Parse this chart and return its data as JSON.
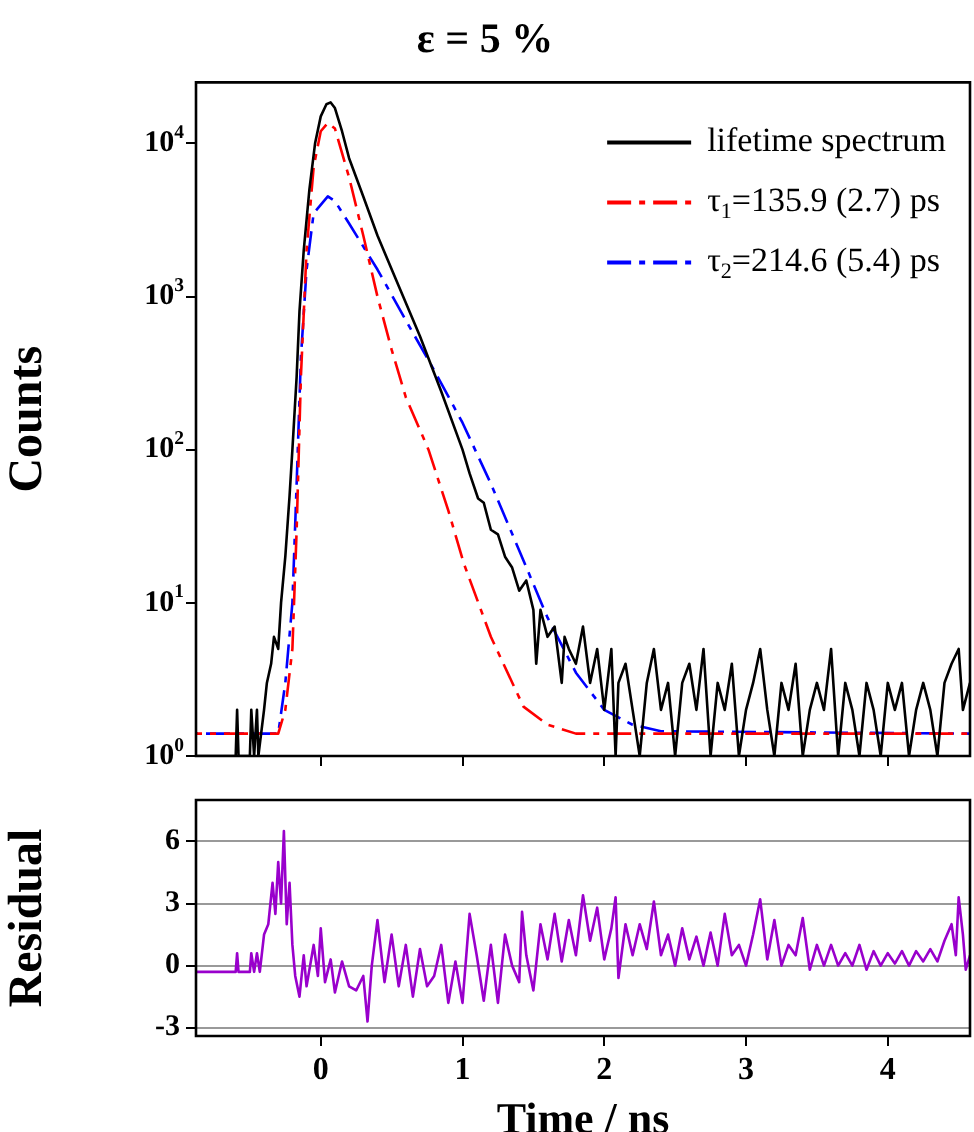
{
  "chart_data": [
    {
      "type": "line",
      "title": "ε = 5 %",
      "ylabel": "Counts",
      "log": "y",
      "xlim": [
        -0.88,
        4.58
      ],
      "xticks": [
        0,
        1,
        2,
        3,
        4
      ],
      "ylim": [
        1,
        25000
      ],
      "yticks": [
        {
          "value": 1,
          "label": "10$^{0}$"
        },
        {
          "value": 10,
          "label": "10$^{1}$"
        },
        {
          "value": 100,
          "label": "10$^{2}$"
        },
        {
          "value": 1000,
          "label": "10$^{3}$"
        },
        {
          "value": 10000,
          "label": "10$^{4}$"
        }
      ],
      "tick_labels": "y",
      "legend": "top right",
      "series": [
        {
          "name": "lifetime spectrum",
          "color": "#000000",
          "line_style": "solid",
          "x": [
            -0.88,
            -0.6,
            -0.59,
            -0.58,
            -0.5,
            -0.49,
            -0.47,
            -0.45,
            -0.44,
            -0.4,
            -0.38,
            -0.35,
            -0.33,
            -0.3,
            -0.28,
            -0.25,
            -0.22,
            -0.2,
            -0.17,
            -0.15,
            -0.12,
            -0.08,
            -0.04,
            0.0,
            0.04,
            0.07,
            0.1,
            0.15,
            0.2,
            0.3,
            0.4,
            0.55,
            0.7,
            0.85,
            1.0,
            1.05,
            1.11,
            1.15,
            1.2,
            1.25,
            1.3,
            1.35,
            1.4,
            1.45,
            1.5,
            1.52,
            1.55,
            1.6,
            1.65,
            1.7,
            1.72,
            1.75,
            1.8,
            1.85,
            1.9,
            1.95,
            2.0,
            2.05,
            2.08,
            2.1,
            2.15,
            2.2,
            2.25,
            2.3,
            2.35,
            2.4,
            2.45,
            2.5,
            2.55,
            2.6,
            2.65,
            2.7,
            2.75,
            2.8,
            2.85,
            2.9,
            2.95,
            3.0,
            3.05,
            3.1,
            3.15,
            3.2,
            3.25,
            3.3,
            3.35,
            3.4,
            3.45,
            3.5,
            3.55,
            3.6,
            3.65,
            3.7,
            3.75,
            3.8,
            3.85,
            3.9,
            3.95,
            4.0,
            4.05,
            4.1,
            4.15,
            4.2,
            4.25,
            4.3,
            4.35,
            4.4,
            4.45,
            4.5,
            4.53,
            4.58
          ],
          "values": [
            1,
            1,
            2,
            1,
            1,
            2,
            1,
            2,
            1,
            2,
            3,
            4,
            6,
            5,
            10,
            20,
            50,
            100,
            300,
            800,
            2000,
            5000,
            10000,
            15000,
            18000,
            18500,
            17000,
            12000,
            8000,
            4500,
            2500,
            1170,
            550,
            240,
            100,
            70,
            48,
            45,
            30,
            28,
            20,
            17,
            12,
            14,
            9,
            4,
            9,
            6,
            7,
            3,
            6,
            5,
            4,
            7,
            3,
            5,
            2,
            5,
            1,
            3,
            4,
            2,
            1,
            3,
            5,
            2,
            3,
            1,
            3,
            4,
            2,
            5,
            1,
            3,
            2,
            4,
            1,
            2,
            3,
            5,
            2,
            1,
            3,
            2,
            4,
            1,
            2,
            3,
            2,
            5,
            1,
            3,
            2,
            1,
            3,
            2,
            1,
            3,
            2,
            3,
            1,
            2,
            3,
            2,
            1,
            3,
            4,
            5,
            2,
            3
          ]
        },
        {
          "name": "τ$_{1}$=135.9 (2.7) ps",
          "color": "#ff0000",
          "line_style": "dashed",
          "x": [
            -0.88,
            -0.3,
            -0.25,
            -0.2,
            -0.17,
            -0.14,
            -0.1,
            -0.05,
            0.0,
            0.05,
            0.1,
            0.2,
            0.3,
            0.4,
            0.5,
            0.6,
            0.76,
            0.9,
            1.01,
            1.2,
            1.43,
            1.6,
            1.8,
            4.58
          ],
          "values": [
            1.4,
            1.4,
            2,
            5,
            30,
            300,
            2000,
            7000,
            12000,
            13600,
            12500,
            6000,
            2500,
            1000,
            450,
            220,
            100,
            40,
            18,
            6,
            2.1,
            1.6,
            1.4,
            1.4
          ]
        },
        {
          "name": "τ$_{2}$=214.6 (5.4) ps",
          "color": "#0000ff",
          "line_style": "dashed",
          "x": [
            -0.88,
            -0.3,
            -0.25,
            -0.2,
            -0.17,
            -0.14,
            -0.1,
            -0.05,
            0.05,
            0.1,
            0.2,
            0.4,
            0.6,
            0.8,
            1.0,
            1.2,
            1.4,
            1.6,
            1.8,
            2.0,
            2.2,
            2.4,
            4.58
          ],
          "values": [
            1.4,
            1.4,
            3,
            10,
            60,
            400,
            1500,
            3500,
            4500,
            4200,
            3000,
            1500,
            700,
            330,
            150,
            60,
            22,
            8,
            3.5,
            2,
            1.6,
            1.45,
            1.4
          ]
        }
      ]
    },
    {
      "type": "line",
      "xlabel": "Time / ns",
      "ylabel": "Residual",
      "xlim": [
        -0.88,
        4.58
      ],
      "xticks": [
        0,
        1,
        2,
        3,
        4
      ],
      "ylim": [
        -3.4,
        8
      ],
      "yticks": [
        -3,
        0,
        3,
        6
      ],
      "grid": "y",
      "series": [
        {
          "color": "#9900cc",
          "x": [
            -0.88,
            -0.6,
            -0.59,
            -0.58,
            -0.5,
            -0.49,
            -0.47,
            -0.45,
            -0.43,
            -0.4,
            -0.37,
            -0.34,
            -0.32,
            -0.3,
            -0.28,
            -0.26,
            -0.24,
            -0.22,
            -0.2,
            -0.18,
            -0.15,
            -0.12,
            -0.1,
            -0.05,
            -0.02,
            0.0,
            0.03,
            0.07,
            0.1,
            0.15,
            0.2,
            0.25,
            0.3,
            0.33,
            0.36,
            0.4,
            0.45,
            0.5,
            0.55,
            0.6,
            0.65,
            0.7,
            0.75,
            0.8,
            0.85,
            0.9,
            0.95,
            1.0,
            1.05,
            1.1,
            1.15,
            1.2,
            1.25,
            1.3,
            1.35,
            1.4,
            1.42,
            1.45,
            1.5,
            1.55,
            1.6,
            1.65,
            1.7,
            1.75,
            1.8,
            1.85,
            1.9,
            1.95,
            2.0,
            2.05,
            2.08,
            2.1,
            2.15,
            2.2,
            2.25,
            2.3,
            2.35,
            2.4,
            2.45,
            2.5,
            2.55,
            2.6,
            2.65,
            2.7,
            2.75,
            2.8,
            2.85,
            2.9,
            2.95,
            3.0,
            3.05,
            3.1,
            3.15,
            3.2,
            3.25,
            3.3,
            3.35,
            3.4,
            3.45,
            3.5,
            3.55,
            3.6,
            3.65,
            3.7,
            3.75,
            3.8,
            3.85,
            3.9,
            3.95,
            4.0,
            4.05,
            4.1,
            4.15,
            4.2,
            4.25,
            4.3,
            4.35,
            4.4,
            4.45,
            4.48,
            4.5,
            4.53,
            4.55,
            4.58
          ],
          "values": [
            -0.3,
            -0.3,
            0.6,
            -0.3,
            -0.3,
            0.6,
            -0.3,
            0.6,
            -0.3,
            1.5,
            2,
            4,
            2.5,
            5,
            3,
            6.5,
            2,
            4,
            1,
            -0.5,
            -1.5,
            0.5,
            -1,
            1,
            -0.5,
            1.8,
            -0.8,
            0.3,
            -1.3,
            0.2,
            -1,
            -1.2,
            -0.5,
            -2.7,
            0,
            2.2,
            -0.8,
            1.5,
            -1,
            1,
            -1.5,
            0.8,
            -1,
            -0.5,
            1,
            -1.8,
            0.2,
            -1.8,
            2.5,
            0.5,
            -1.7,
            1,
            -1.8,
            1.5,
            0,
            -0.8,
            2.6,
            0.5,
            -1.2,
            2,
            0.3,
            2.5,
            0.2,
            2.2,
            0.5,
            3.4,
            1.2,
            2.8,
            0.3,
            1.8,
            3.3,
            -0.6,
            2,
            0.5,
            2,
            0.8,
            3.1,
            0.5,
            1.5,
            0,
            1.8,
            0.3,
            1.4,
            0,
            1.6,
            0,
            2.5,
            0.5,
            1,
            0,
            1.5,
            3.2,
            0.3,
            2.2,
            0,
            1,
            0.5,
            2.3,
            -0.2,
            1,
            0,
            1,
            0,
            0.6,
            0,
            1,
            -0.2,
            0.7,
            0,
            0.6,
            0.1,
            0.7,
            0,
            0.7,
            0.2,
            0.8,
            0.2,
            1.2,
            2,
            0.5,
            3.3,
            1.5,
            -0.2,
            0.5
          ]
        }
      ]
    }
  ]
}
